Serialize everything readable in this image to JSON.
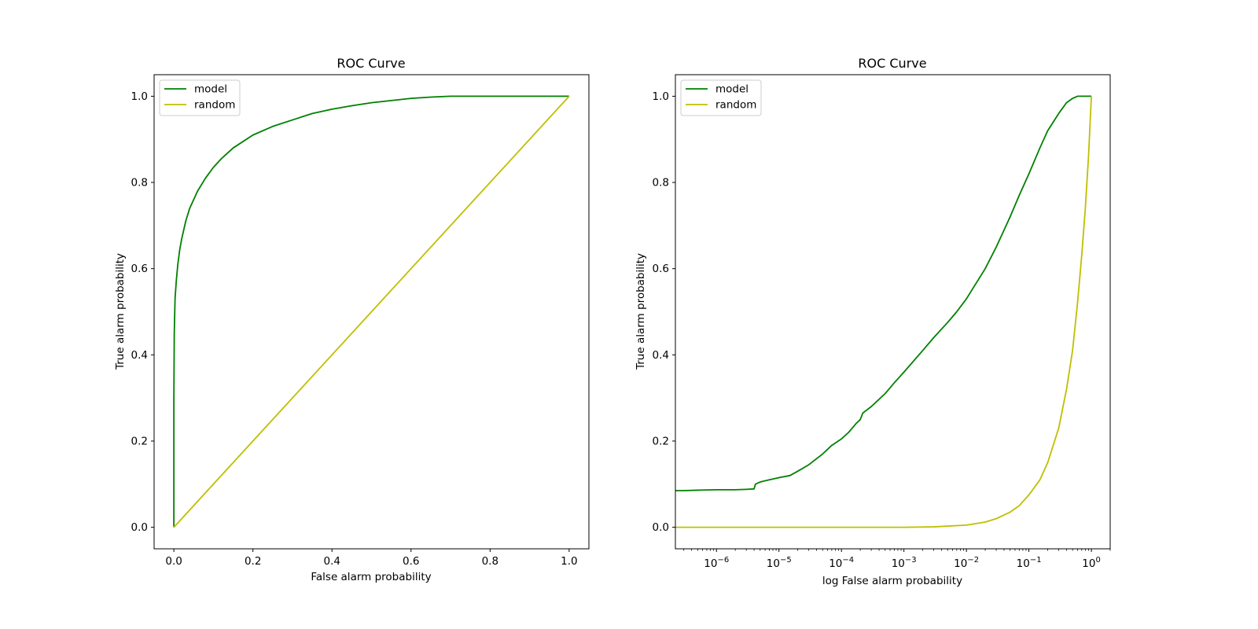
{
  "chart_data": [
    {
      "type": "line",
      "title": "ROC Curve",
      "xlabel": "False alarm probability",
      "ylabel": "True alarm probability",
      "xscale": "linear",
      "xlim": [
        -0.05,
        1.05
      ],
      "ylim": [
        -0.05,
        1.05
      ],
      "xticks": [
        0.0,
        0.2,
        0.4,
        0.6,
        0.8,
        1.0
      ],
      "xtick_labels": [
        "0.0",
        "0.2",
        "0.4",
        "0.6",
        "0.8",
        "1.0"
      ],
      "yticks": [
        0.0,
        0.2,
        0.4,
        0.6,
        0.8,
        1.0
      ],
      "ytick_labels": [
        "0.0",
        "0.2",
        "0.4",
        "0.6",
        "0.8",
        "1.0"
      ],
      "legend": "upper left",
      "grid": false,
      "series": [
        {
          "name": "model",
          "color": "#008000",
          "x": [
            0.0,
            0.0,
            0.001,
            0.003,
            0.006,
            0.01,
            0.015,
            0.02,
            0.03,
            0.04,
            0.05,
            0.06,
            0.08,
            0.1,
            0.12,
            0.15,
            0.2,
            0.25,
            0.3,
            0.35,
            0.4,
            0.45,
            0.5,
            0.55,
            0.6,
            0.65,
            0.7,
            0.8,
            0.9,
            1.0
          ],
          "y": [
            0.0,
            0.3,
            0.45,
            0.53,
            0.57,
            0.61,
            0.645,
            0.67,
            0.71,
            0.74,
            0.76,
            0.78,
            0.81,
            0.835,
            0.855,
            0.88,
            0.91,
            0.93,
            0.945,
            0.96,
            0.97,
            0.978,
            0.985,
            0.99,
            0.995,
            0.998,
            1.0,
            1.0,
            1.0,
            1.0
          ]
        },
        {
          "name": "random",
          "color": "#bfbf00",
          "x": [
            0.0,
            1.0
          ],
          "y": [
            0.0,
            1.0
          ]
        }
      ]
    },
    {
      "type": "line",
      "title": "ROC Curve",
      "xlabel": "log False alarm probability",
      "ylabel": "True alarm probability",
      "xscale": "log",
      "xlim": [
        2.2e-07,
        2.0
      ],
      "ylim": [
        -0.05,
        1.05
      ],
      "xticks": [
        1e-06,
        1e-05,
        0.0001,
        0.001,
        0.01,
        0.1,
        1
      ],
      "xtick_labels": [
        {
          "base": "10",
          "exp": "−6"
        },
        {
          "base": "10",
          "exp": "−5"
        },
        {
          "base": "10",
          "exp": "−4"
        },
        {
          "base": "10",
          "exp": "−3"
        },
        {
          "base": "10",
          "exp": "−2"
        },
        {
          "base": "10",
          "exp": "−1"
        },
        {
          "base": "10",
          "exp": "0"
        }
      ],
      "yticks": [
        0.0,
        0.2,
        0.4,
        0.6,
        0.8,
        1.0
      ],
      "ytick_labels": [
        "0.0",
        "0.2",
        "0.4",
        "0.6",
        "0.8",
        "1.0"
      ],
      "legend": "upper left",
      "grid": false,
      "series": [
        {
          "name": "model",
          "color": "#008000",
          "x": [
            2.2e-07,
            3e-07,
            5e-07,
            1e-06,
            2e-06,
            3e-06,
            4e-06,
            4.2e-06,
            5e-06,
            7e-06,
            1e-05,
            1.5e-05,
            2e-05,
            3e-05,
            5e-05,
            7e-05,
            0.0001,
            0.00013,
            0.00017,
            0.0002,
            0.00022,
            0.0003,
            0.0005,
            0.0007,
            0.001,
            0.002,
            0.003,
            0.005,
            0.007,
            0.01,
            0.02,
            0.03,
            0.05,
            0.07,
            0.1,
            0.15,
            0.2,
            0.3,
            0.4,
            0.5,
            0.6,
            0.7,
            1.0
          ],
          "y": [
            0.085,
            0.085,
            0.086,
            0.087,
            0.087,
            0.088,
            0.089,
            0.1,
            0.105,
            0.11,
            0.115,
            0.12,
            0.13,
            0.145,
            0.17,
            0.19,
            0.205,
            0.22,
            0.24,
            0.25,
            0.265,
            0.28,
            0.31,
            0.335,
            0.36,
            0.41,
            0.44,
            0.475,
            0.5,
            0.53,
            0.6,
            0.65,
            0.72,
            0.77,
            0.82,
            0.88,
            0.92,
            0.96,
            0.985,
            0.995,
            1.0,
            1.0,
            1.0
          ]
        },
        {
          "name": "random",
          "color": "#bfbf00",
          "x": [
            2.2e-07,
            1e-06,
            1e-05,
            0.0001,
            0.001,
            0.003,
            0.01,
            0.02,
            0.03,
            0.05,
            0.07,
            0.1,
            0.15,
            0.2,
            0.3,
            0.4,
            0.5,
            0.6,
            0.7,
            0.8,
            0.9,
            1.0
          ],
          "y": [
            0.0,
            0.0,
            0.0,
            0.0,
            0.0,
            0.001,
            0.005,
            0.012,
            0.02,
            0.035,
            0.05,
            0.075,
            0.11,
            0.15,
            0.23,
            0.32,
            0.41,
            0.52,
            0.63,
            0.74,
            0.86,
            1.0
          ]
        }
      ]
    }
  ]
}
